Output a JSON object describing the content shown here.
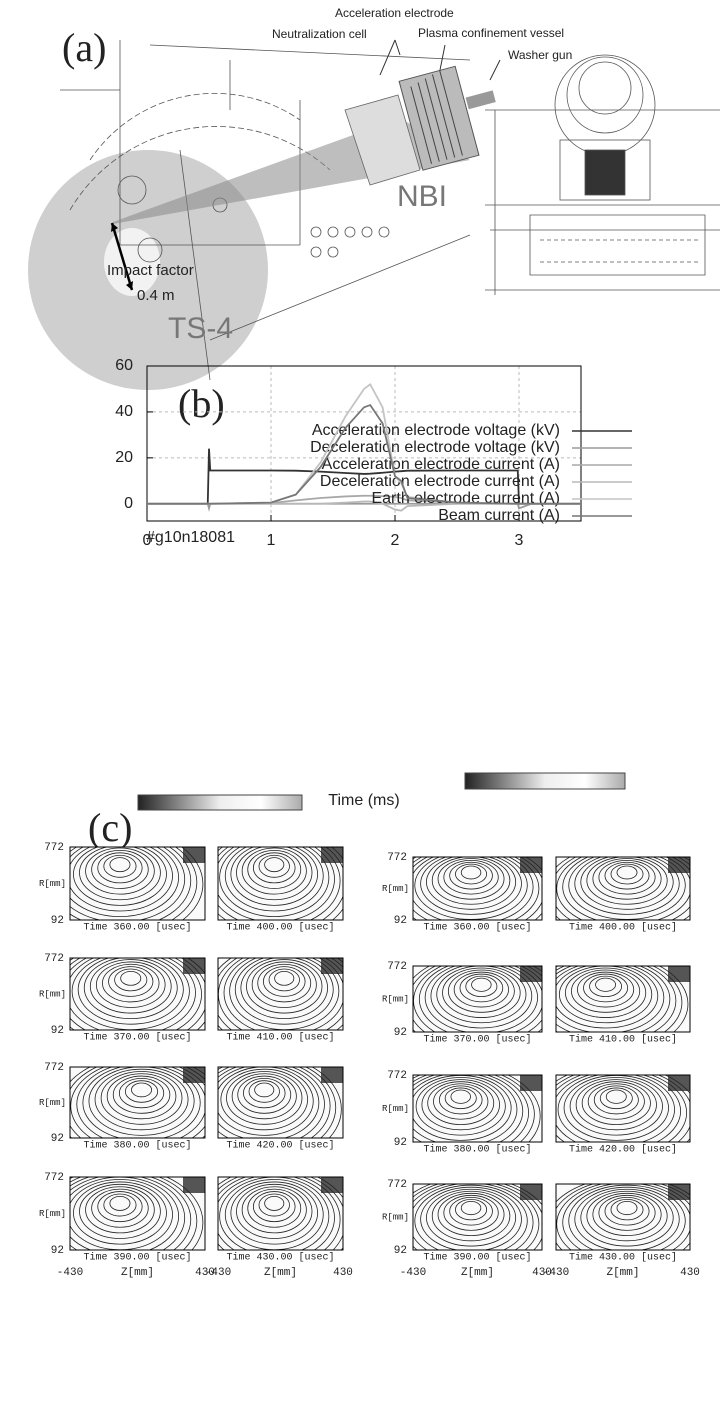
{
  "panel_a": {
    "label": "(a)",
    "acceleration_electrode": "Acceleration electrode",
    "neutralization_cell": "Neutralization cell",
    "plasma_confinement_vessel": "Plasma confinement vessel",
    "washer_gun": "Washer gun",
    "nbi": "NBI",
    "impact_factor": "Impact factor",
    "impact_distance": "0.4 m",
    "ts4": "TS-4"
  },
  "chart_data": {
    "type": "line",
    "panel_label": "(b)",
    "title": "#g10n18081",
    "x_label": "Time (ms)",
    "x": [
      0,
      0.49,
      0.5,
      0.51,
      1.0,
      1.2,
      1.4,
      1.6,
      1.75,
      1.8,
      1.9,
      2.0,
      2.05,
      2.1,
      2.5,
      2.99,
      3.0,
      3.1,
      3.5
    ],
    "xlim": [
      0,
      3.5
    ],
    "xticks": [
      0,
      1,
      2,
      3
    ],
    "ylim": [
      -7.5,
      60
    ],
    "yticks": [
      0,
      20,
      40,
      60
    ],
    "grid": true,
    "series": [
      {
        "name": "Acceleration electrode voltage (kV)",
        "color": "#333333",
        "values": [
          0,
          0,
          24,
          14.5,
          14.5,
          14.4,
          14,
          13.4,
          13,
          13.1,
          13.5,
          14,
          14.2,
          14.4,
          14.5,
          14.5,
          0,
          0,
          0
        ]
      },
      {
        "name": "Deceleration electrode voltage (kV)",
        "color": "#9a9a9a",
        "values": [
          0,
          0,
          -2,
          0,
          0,
          0,
          0,
          0,
          0,
          0,
          0,
          0,
          0,
          0,
          0,
          0,
          -2,
          0,
          0
        ]
      },
      {
        "name": "Acceleration electrode current (A)",
        "color": "#a8a8a8",
        "values": [
          0,
          0,
          0,
          0,
          0.3,
          1.5,
          2.5,
          3.2,
          3.5,
          3.5,
          3.3,
          3,
          2.5,
          1.5,
          0.5,
          0,
          0,
          0,
          0
        ]
      },
      {
        "name": "Deceleration electrode current (A)",
        "color": "#b8b8b8",
        "values": [
          0,
          0,
          0,
          0,
          0,
          0,
          0,
          0.5,
          1,
          1,
          0,
          -2.5,
          -3,
          -1,
          0,
          0,
          0,
          0,
          0
        ]
      },
      {
        "name": "Earth electrode current (A)",
        "color": "#c4c4c4",
        "values": [
          0,
          0,
          0,
          0,
          0.5,
          4,
          18,
          38,
          50,
          52,
          42,
          12,
          9,
          3,
          0.5,
          0,
          0,
          0,
          0
        ]
      },
      {
        "name": "Beam current (A)",
        "color": "#777777",
        "values": [
          0,
          0,
          0,
          0,
          0.5,
          4,
          16,
          33,
          42,
          43,
          35,
          12,
          10,
          2.5,
          0.5,
          0,
          0,
          0,
          0
        ]
      }
    ]
  },
  "panel_c": {
    "label": "(c)",
    "r_top": "772",
    "r_bottom": "92",
    "r_label": "R[mm]",
    "z_left": "-430",
    "z_label": "Z[mm]",
    "z_right": "430",
    "groups": [
      {
        "times": [
          "Time 360.00 [usec]",
          "Time 370.00 [usec]",
          "Time 380.00 [usec]",
          "Time 390.00 [usec]",
          "Time 400.00 [usec]",
          "Time 410.00 [usec]",
          "Time 420.00 [usec]",
          "Time 430.00 [usec]"
        ]
      },
      {
        "times": [
          "Time 360.00 [usec]",
          "Time 370.00 [usec]",
          "Time 380.00 [usec]",
          "Time 390.00 [usec]",
          "Time 400.00 [usec]",
          "Time 410.00 [usec]",
          "Time 420.00 [usec]",
          "Time 430.00 [usec]"
        ]
      }
    ]
  }
}
